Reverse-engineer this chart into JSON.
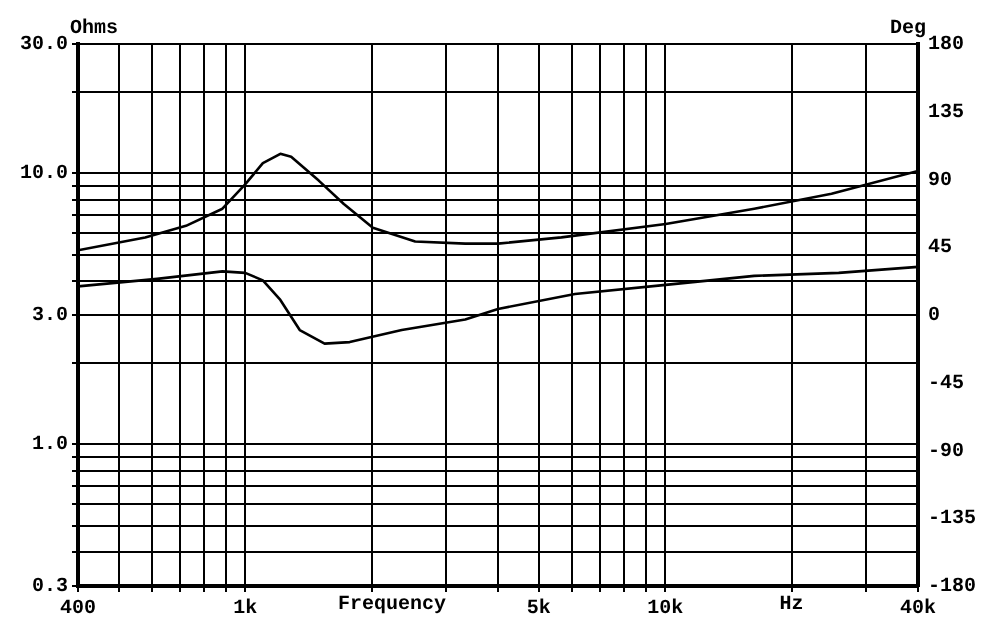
{
  "chart_data": {
    "type": "line",
    "xlabel": "Frequency",
    "ylabel": "Ohms",
    "y2label": "Deg",
    "annotations": [
      "Hz"
    ],
    "log": "xy",
    "grid": true,
    "legend": false,
    "marker": "none",
    "line_style": "solid",
    "xlim": [
      400,
      40000
    ],
    "xticks": [
      400,
      {
        "value": 500,
        "label": null
      },
      {
        "value": 600,
        "label": null
      },
      {
        "value": 700,
        "label": null
      },
      {
        "value": 800,
        "label": null
      },
      {
        "value": 900,
        "label": null
      },
      {
        "value": 1000,
        "label": "1k"
      },
      {
        "value": 2000,
        "label": null
      },
      {
        "value": 3000,
        "label": null
      },
      {
        "value": 4000,
        "label": null
      },
      {
        "value": 5000,
        "label": "5k"
      },
      {
        "value": 6000,
        "label": null
      },
      {
        "value": 7000,
        "label": null
      },
      {
        "value": 8000,
        "label": null
      },
      {
        "value": 9000,
        "label": null
      },
      {
        "value": 10000,
        "label": "10k"
      },
      {
        "value": 20000,
        "label": null
      },
      {
        "value": 30000,
        "label": null
      },
      {
        "value": 40000,
        "label": "40k"
      }
    ],
    "ylim": [
      0.3,
      30
    ],
    "yticks": [
      {
        "value": 0.3,
        "label": "0.3"
      },
      {
        "value": 0.4,
        "label": null
      },
      {
        "value": 0.5,
        "label": null
      },
      {
        "value": 0.6,
        "label": null
      },
      {
        "value": 0.7,
        "label": null
      },
      {
        "value": 0.8,
        "label": null
      },
      {
        "value": 0.9,
        "label": null
      },
      {
        "value": 1,
        "label": "1.0"
      },
      {
        "value": 2,
        "label": null
      },
      {
        "value": 3,
        "label": "3.0"
      },
      {
        "value": 4,
        "label": null
      },
      {
        "value": 5,
        "label": null
      },
      {
        "value": 6,
        "label": null
      },
      {
        "value": 7,
        "label": null
      },
      {
        "value": 8,
        "label": null
      },
      {
        "value": 9,
        "label": null
      },
      {
        "value": 10,
        "label": "10.0"
      },
      {
        "value": 20,
        "label": null
      },
      {
        "value": 30,
        "label": "30.0"
      }
    ],
    "y2lim": [
      -180,
      180
    ],
    "y2ticks": [
      -180,
      -135,
      -90,
      -45,
      0,
      45,
      90,
      135,
      180
    ],
    "series": [
      {
        "color": "#000000",
        "x": [
          400,
          578,
          723,
          883,
          1000,
          1102,
          1213,
          1287,
          1497,
          1718,
          2014,
          2540,
          3342,
          4000,
          5664,
          10030,
          16300,
          24900,
          40000
        ],
        "values": [
          5.2,
          5.8,
          6.4,
          7.4,
          9.1,
          10.9,
          11.8,
          11.5,
          9.4,
          7.7,
          6.3,
          5.6,
          5.5,
          5.5,
          5.8,
          6.5,
          7.4,
          8.4,
          10.2
        ]
      },
      {
        "color": "#000000",
        "axis": "y2",
        "x": [
          400,
          617,
          883,
          1000,
          1102,
          1213,
          1349,
          1546,
          1774,
          2360,
          3342,
          4000,
          6100,
          10030,
          16300,
          25900,
          40000
        ],
        "values": [
          19,
          24,
          29,
          28,
          23,
          10,
          -10,
          -19,
          -18,
          -10,
          -3,
          4,
          14,
          20,
          26,
          28,
          32
        ]
      }
    ]
  }
}
